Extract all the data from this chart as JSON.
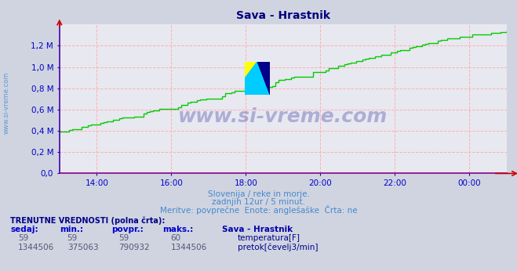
{
  "title": "Sava - Hrastnik",
  "title_color": "#000080",
  "bg_color": "#d0d4e0",
  "plot_bg_color": "#e8e8f0",
  "grid_color": "#ffaaaa",
  "grid_style": "--",
  "axis_color": "#0000cc",
  "tick_color": "#0000cc",
  "info_color": "#4488cc",
  "line_color": "#00cc00",
  "line_width": 1.0,
  "x_tick_labels": [
    "14:00",
    "16:00",
    "18:00",
    "20:00",
    "22:00",
    "00:00"
  ],
  "x_tick_positions": [
    60,
    180,
    300,
    420,
    540,
    660
  ],
  "y_tick_labels": [
    "0,0",
    "0,2 M",
    "0,4 M",
    "0,6 M",
    "0,8 M",
    "1,0 M",
    "1,2 M"
  ],
  "y_tick_values": [
    0,
    200000,
    400000,
    600000,
    800000,
    1000000,
    1200000
  ],
  "ylim": [
    0,
    1400000
  ],
  "xlim": [
    0,
    720
  ],
  "subtitle_lines": [
    "Slovenija / reke in morje.",
    "zadnjih 12ur / 5 minut.",
    "Meritve: povprečne  Enote: anglešaške  Črta: ne"
  ],
  "footer_bold": "TRENUTNE VREDNOSTI (polna črta):",
  "footer_headers": [
    "sedaj:",
    "min.:",
    "povpr.:",
    "maks.:",
    "Sava - Hrastnik"
  ],
  "footer_row1": [
    "59",
    "59",
    "59",
    "60",
    "temperatura[F]"
  ],
  "footer_row2": [
    "1344506",
    "375063",
    "790932",
    "1344506",
    "pretok[čevelj3/min]"
  ],
  "legend_color_temp": "#cc0000",
  "legend_color_flow": "#00cc00",
  "watermark_text": "www.si-vreme.com",
  "watermark_color": "#000088",
  "watermark_alpha": 0.25,
  "sidebar_text": "www.si-vreme.com",
  "sidebar_color": "#4488cc"
}
